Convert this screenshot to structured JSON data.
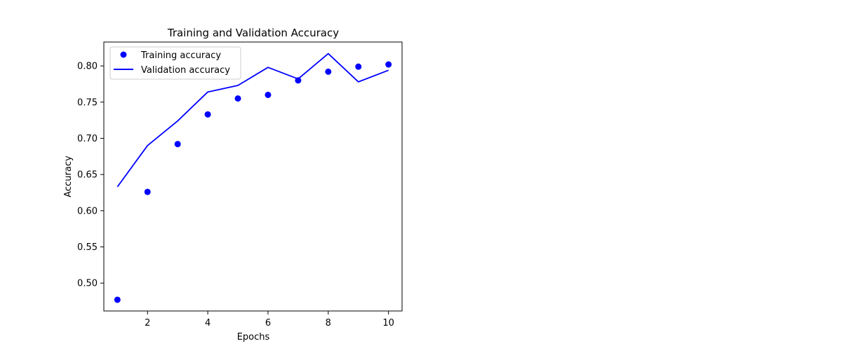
{
  "chart_data": {
    "type": "line",
    "title": "Training and Validation Accuracy",
    "xlabel": "Epochs",
    "ylabel": "Accuracy",
    "xlim": [
      0.55,
      10.45
    ],
    "ylim": [
      0.4615,
      0.833
    ],
    "xticks": [
      2,
      4,
      6,
      8,
      10
    ],
    "yticks": [
      0.5,
      0.55,
      0.6,
      0.65,
      0.7,
      0.75,
      0.8
    ],
    "xtick_labels": [
      "2",
      "4",
      "6",
      "8",
      "10"
    ],
    "ytick_labels": [
      "0.50",
      "0.55",
      "0.60",
      "0.65",
      "0.70",
      "0.75",
      "0.80"
    ],
    "grid": false,
    "legend_position": "upper-left",
    "x": [
      1,
      2,
      3,
      4,
      5,
      6,
      7,
      8,
      9,
      10
    ],
    "series": [
      {
        "name": "Training accuracy",
        "style": "scatter",
        "color": "#0000ff",
        "values": [
          0.477,
          0.626,
          0.692,
          0.733,
          0.755,
          0.76,
          0.78,
          0.792,
          0.799,
          0.802
        ]
      },
      {
        "name": "Validation accuracy",
        "style": "line",
        "color": "#0000ff",
        "values": [
          0.633,
          0.69,
          0.724,
          0.764,
          0.773,
          0.798,
          0.782,
          0.817,
          0.778,
          0.794
        ]
      }
    ]
  }
}
